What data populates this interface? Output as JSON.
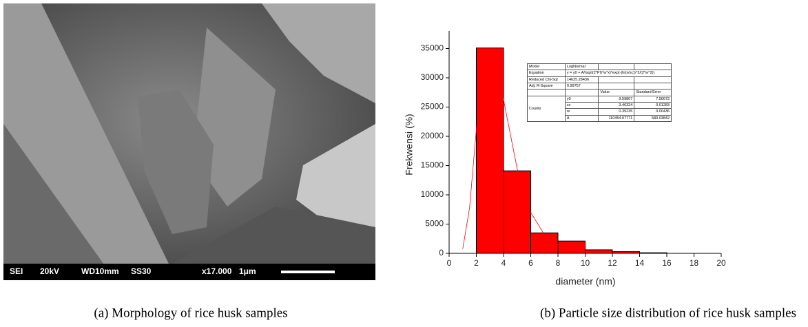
{
  "sem_image": {
    "labels": [
      "SEI",
      "20kV",
      "WD10mm",
      "SS30",
      "x17.000",
      "1μm"
    ]
  },
  "chart_data": {
    "type": "histogram",
    "bins": [
      2,
      4,
      6,
      8,
      10,
      12,
      14,
      16
    ],
    "values": [
      35100,
      14100,
      3500,
      2100,
      600,
      300,
      100
    ],
    "color": "#ff0000",
    "xlabel": "diameter (nm)",
    "ylabel": "Frekwensi (%)",
    "xlim": [
      0,
      20
    ],
    "xticks": [
      0,
      2,
      4,
      6,
      8,
      10,
      12,
      14,
      16,
      18,
      20
    ],
    "ylim": [
      0,
      38000
    ],
    "yticks": [
      0,
      5000,
      10000,
      15000,
      20000,
      25000,
      30000,
      35000
    ],
    "fit": {
      "color": "#ff0000",
      "x": [
        1,
        1.5,
        2,
        2.5,
        3,
        3.5,
        4,
        5,
        6,
        7,
        8,
        10,
        12
      ],
      "y": [
        750,
        7730,
        21140,
        31890,
        35070,
        32110,
        26250,
        14470,
        6990,
        3195,
        1430,
        288,
        61
      ]
    },
    "fit_table": {
      "rows": [
        [
          "Model",
          "LogNormal"
        ],
        [
          "Equation",
          "y = y0 + A/(sqrt(2*PI)*w*x)*exp(-(ln(x/xc))^2/(2*w^2))"
        ],
        [
          "Reduced Chi-Sqr",
          "14625.28436"
        ],
        [
          "Adj. R-Square",
          "0.99757"
        ]
      ],
      "header": [
        "Value",
        "Standard Error"
      ],
      "group": "Counts",
      "params": [
        [
          "y0",
          "9.59807",
          "7.56673"
        ],
        [
          "xc",
          "3.46324",
          "0.01283"
        ],
        [
          "w",
          "0.39235",
          "0.00436"
        ],
        [
          "A",
          "110454.07771",
          "580.03842"
        ]
      ]
    }
  },
  "captions": [
    "(a) Morphology of rice husk samples",
    "(b) Particle size distribution of rice husk samples"
  ]
}
